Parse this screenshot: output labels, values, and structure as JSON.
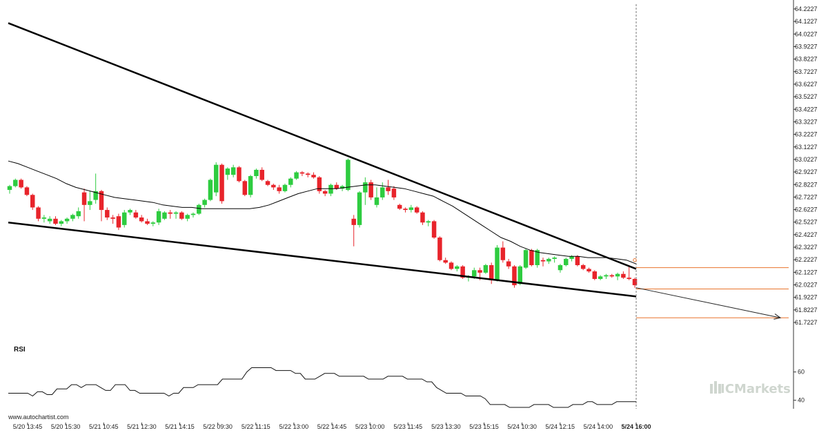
{
  "chart_data": {
    "type": "candlestick",
    "title": "",
    "x_tick_labels": [
      "5/20 13:45",
      "5/20 15:30",
      "5/21 10:45",
      "5/21 12:30",
      "5/21 14:15",
      "5/22 09:30",
      "5/22 11:15",
      "5/22 13:00",
      "5/22 14:45",
      "5/23 10:00",
      "5/23 11:45",
      "5/23 13:30",
      "5/23 15:15",
      "5/24 10:30",
      "5/24 12:15",
      "5/24 14:00",
      "5/24 16:00"
    ],
    "highlighted_x_label": "5/24 16:00",
    "y_tick_labels": [
      "64.2227",
      "64.1227",
      "64.0227",
      "63.9227",
      "63.8227",
      "63.7227",
      "63.6227",
      "63.5227",
      "63.4227",
      "63.3227",
      "63.2227",
      "63.1227",
      "63.0227",
      "62.9227",
      "62.8227",
      "62.7227",
      "62.6227",
      "62.5227",
      "62.4227",
      "62.3227",
      "62.2227",
      "62.1227",
      "62.0227",
      "61.9227",
      "61.8227",
      "61.7227"
    ],
    "ylim": [
      61.69,
      64.25
    ],
    "candles": [
      {
        "o": 62.78,
        "h": 62.82,
        "l": 62.75,
        "c": 62.81
      },
      {
        "o": 62.81,
        "h": 62.87,
        "l": 62.8,
        "c": 62.86
      },
      {
        "o": 62.86,
        "h": 62.87,
        "l": 62.79,
        "c": 62.8
      },
      {
        "o": 62.8,
        "h": 62.81,
        "l": 62.73,
        "c": 62.74
      },
      {
        "o": 62.74,
        "h": 62.75,
        "l": 62.62,
        "c": 62.64
      },
      {
        "o": 62.64,
        "h": 62.65,
        "l": 62.53,
        "c": 62.55
      },
      {
        "o": 62.55,
        "h": 62.58,
        "l": 62.52,
        "c": 62.56
      },
      {
        "o": 62.53,
        "h": 62.57,
        "l": 62.51,
        "c": 62.55
      },
      {
        "o": 62.55,
        "h": 62.57,
        "l": 62.5,
        "c": 62.51
      },
      {
        "o": 62.51,
        "h": 62.54,
        "l": 62.49,
        "c": 62.53
      },
      {
        "o": 62.53,
        "h": 62.56,
        "l": 62.51,
        "c": 62.55
      },
      {
        "o": 62.55,
        "h": 62.59,
        "l": 62.53,
        "c": 62.58
      },
      {
        "o": 62.57,
        "h": 62.64,
        "l": 62.55,
        "c": 62.61
      },
      {
        "o": 62.76,
        "h": 62.79,
        "l": 62.53,
        "c": 62.66
      },
      {
        "o": 62.66,
        "h": 62.77,
        "l": 62.62,
        "c": 62.69
      },
      {
        "o": 62.7,
        "h": 62.91,
        "l": 62.67,
        "c": 62.77
      },
      {
        "o": 62.77,
        "h": 62.78,
        "l": 62.53,
        "c": 62.62
      },
      {
        "o": 62.62,
        "h": 62.64,
        "l": 62.54,
        "c": 62.56
      },
      {
        "o": 62.56,
        "h": 62.58,
        "l": 62.51,
        "c": 62.55
      },
      {
        "o": 62.57,
        "h": 62.59,
        "l": 62.46,
        "c": 62.48
      },
      {
        "o": 62.5,
        "h": 62.62,
        "l": 62.48,
        "c": 62.6
      },
      {
        "o": 62.6,
        "h": 62.63,
        "l": 62.58,
        "c": 62.62
      },
      {
        "o": 62.6,
        "h": 62.62,
        "l": 62.55,
        "c": 62.56
      },
      {
        "o": 62.56,
        "h": 62.58,
        "l": 62.52,
        "c": 62.53
      },
      {
        "o": 62.53,
        "h": 62.55,
        "l": 62.5,
        "c": 62.51
      },
      {
        "o": 62.51,
        "h": 62.53,
        "l": 62.49,
        "c": 62.52
      },
      {
        "o": 62.52,
        "h": 62.63,
        "l": 62.5,
        "c": 62.61
      },
      {
        "o": 62.55,
        "h": 62.61,
        "l": 62.54,
        "c": 62.6
      },
      {
        "o": 62.6,
        "h": 62.62,
        "l": 62.55,
        "c": 62.59
      },
      {
        "o": 62.59,
        "h": 62.61,
        "l": 62.55,
        "c": 62.6
      },
      {
        "o": 62.6,
        "h": 62.61,
        "l": 62.54,
        "c": 62.55
      },
      {
        "o": 62.55,
        "h": 62.59,
        "l": 62.53,
        "c": 62.58
      },
      {
        "o": 62.58,
        "h": 62.6,
        "l": 62.56,
        "c": 62.59
      },
      {
        "o": 62.59,
        "h": 62.67,
        "l": 62.58,
        "c": 62.66
      },
      {
        "o": 62.66,
        "h": 62.71,
        "l": 62.64,
        "c": 62.7
      },
      {
        "o": 62.7,
        "h": 62.87,
        "l": 62.69,
        "c": 62.86
      },
      {
        "o": 62.76,
        "h": 63.0,
        "l": 62.73,
        "c": 62.98
      },
      {
        "o": 62.98,
        "h": 62.99,
        "l": 62.67,
        "c": 62.69
      },
      {
        "o": 62.9,
        "h": 62.96,
        "l": 62.86,
        "c": 62.95
      },
      {
        "o": 62.9,
        "h": 62.98,
        "l": 62.88,
        "c": 62.96
      },
      {
        "o": 62.96,
        "h": 62.97,
        "l": 62.84,
        "c": 62.85
      },
      {
        "o": 62.85,
        "h": 62.86,
        "l": 62.73,
        "c": 62.74
      },
      {
        "o": 62.74,
        "h": 62.9,
        "l": 62.72,
        "c": 62.89
      },
      {
        "o": 62.89,
        "h": 62.95,
        "l": 62.87,
        "c": 62.94
      },
      {
        "o": 62.94,
        "h": 62.96,
        "l": 62.85,
        "c": 62.86
      },
      {
        "o": 62.85,
        "h": 62.86,
        "l": 62.81,
        "c": 62.82
      },
      {
        "o": 62.82,
        "h": 62.83,
        "l": 62.78,
        "c": 62.8
      },
      {
        "o": 62.8,
        "h": 62.82,
        "l": 62.75,
        "c": 62.77
      },
      {
        "o": 62.77,
        "h": 62.83,
        "l": 62.76,
        "c": 62.82
      },
      {
        "o": 62.82,
        "h": 62.88,
        "l": 62.8,
        "c": 62.87
      },
      {
        "o": 62.87,
        "h": 62.93,
        "l": 62.86,
        "c": 62.92
      },
      {
        "o": 62.92,
        "h": 62.93,
        "l": 62.89,
        "c": 62.91
      },
      {
        "o": 62.91,
        "h": 62.92,
        "l": 62.88,
        "c": 62.9
      },
      {
        "o": 62.9,
        "h": 62.92,
        "l": 62.87,
        "c": 62.88
      },
      {
        "o": 62.88,
        "h": 62.89,
        "l": 62.75,
        "c": 62.77
      },
      {
        "o": 62.77,
        "h": 62.78,
        "l": 62.73,
        "c": 62.75
      },
      {
        "o": 62.75,
        "h": 62.83,
        "l": 62.73,
        "c": 62.82
      },
      {
        "o": 62.82,
        "h": 62.84,
        "l": 62.78,
        "c": 62.79
      },
      {
        "o": 62.79,
        "h": 62.82,
        "l": 62.77,
        "c": 62.81
      },
      {
        "o": 62.78,
        "h": 63.03,
        "l": 62.77,
        "c": 63.02
      },
      {
        "o": 62.55,
        "h": 62.58,
        "l": 62.33,
        "c": 62.5
      },
      {
        "o": 62.5,
        "h": 62.77,
        "l": 62.48,
        "c": 62.76
      },
      {
        "o": 62.76,
        "h": 62.88,
        "l": 62.66,
        "c": 62.84
      },
      {
        "o": 62.84,
        "h": 62.86,
        "l": 62.7,
        "c": 62.72
      },
      {
        "o": 62.66,
        "h": 62.8,
        "l": 62.64,
        "c": 62.72
      },
      {
        "o": 62.72,
        "h": 62.84,
        "l": 62.7,
        "c": 62.8
      },
      {
        "o": 62.8,
        "h": 62.86,
        "l": 62.74,
        "c": 62.77
      },
      {
        "o": 62.79,
        "h": 62.81,
        "l": 62.7,
        "c": 62.72
      },
      {
        "o": 62.66,
        "h": 62.67,
        "l": 62.62,
        "c": 62.63
      },
      {
        "o": 62.63,
        "h": 62.64,
        "l": 62.6,
        "c": 62.62
      },
      {
        "o": 62.62,
        "h": 62.66,
        "l": 62.6,
        "c": 62.64
      },
      {
        "o": 62.64,
        "h": 62.65,
        "l": 62.59,
        "c": 62.6
      },
      {
        "o": 62.6,
        "h": 62.61,
        "l": 62.5,
        "c": 62.52
      },
      {
        "o": 62.52,
        "h": 62.54,
        "l": 62.49,
        "c": 62.53
      },
      {
        "o": 62.53,
        "h": 62.54,
        "l": 62.39,
        "c": 62.4
      },
      {
        "o": 62.4,
        "h": 62.41,
        "l": 62.21,
        "c": 62.22
      },
      {
        "o": 62.22,
        "h": 62.24,
        "l": 62.19,
        "c": 62.2
      },
      {
        "o": 62.2,
        "h": 62.21,
        "l": 62.14,
        "c": 62.15
      },
      {
        "o": 62.15,
        "h": 62.18,
        "l": 62.13,
        "c": 62.17
      },
      {
        "o": 62.17,
        "h": 62.18,
        "l": 62.07,
        "c": 62.08
      },
      {
        "o": 62.08,
        "h": 62.1,
        "l": 62.05,
        "c": 62.09
      },
      {
        "o": 62.09,
        "h": 62.16,
        "l": 62.07,
        "c": 62.14
      },
      {
        "o": 62.14,
        "h": 62.16,
        "l": 62.06,
        "c": 62.12
      },
      {
        "o": 62.12,
        "h": 62.19,
        "l": 62.11,
        "c": 62.18
      },
      {
        "o": 62.18,
        "h": 62.2,
        "l": 62.03,
        "c": 62.06
      },
      {
        "o": 62.06,
        "h": 62.34,
        "l": 62.05,
        "c": 62.32
      },
      {
        "o": 62.32,
        "h": 62.37,
        "l": 62.2,
        "c": 62.22
      },
      {
        "o": 62.21,
        "h": 62.23,
        "l": 62.15,
        "c": 62.17
      },
      {
        "o": 62.17,
        "h": 62.18,
        "l": 62.0,
        "c": 62.02
      },
      {
        "o": 62.03,
        "h": 62.18,
        "l": 62.02,
        "c": 62.17
      },
      {
        "o": 62.16,
        "h": 62.31,
        "l": 62.15,
        "c": 62.3
      },
      {
        "o": 62.3,
        "h": 62.31,
        "l": 62.17,
        "c": 62.18
      },
      {
        "o": 62.18,
        "h": 62.31,
        "l": 62.16,
        "c": 62.3
      },
      {
        "o": 62.22,
        "h": 62.24,
        "l": 62.17,
        "c": 62.21
      },
      {
        "o": 62.21,
        "h": 62.24,
        "l": 62.19,
        "c": 62.23
      },
      {
        "o": 62.23,
        "h": 62.25,
        "l": 62.2,
        "c": 62.24
      },
      {
        "o": 62.14,
        "h": 62.19,
        "l": 62.12,
        "c": 62.18
      },
      {
        "o": 62.18,
        "h": 62.24,
        "l": 62.17,
        "c": 62.23
      },
      {
        "o": 62.23,
        "h": 62.26,
        "l": 62.21,
        "c": 62.25
      },
      {
        "o": 62.25,
        "h": 62.26,
        "l": 62.17,
        "c": 62.18
      },
      {
        "o": 62.18,
        "h": 62.19,
        "l": 62.14,
        "c": 62.15
      },
      {
        "o": 62.15,
        "h": 62.16,
        "l": 62.12,
        "c": 62.13
      },
      {
        "o": 62.13,
        "h": 62.14,
        "l": 62.06,
        "c": 62.07
      },
      {
        "o": 62.07,
        "h": 62.1,
        "l": 62.06,
        "c": 62.09
      },
      {
        "o": 62.09,
        "h": 62.11,
        "l": 62.07,
        "c": 62.1
      },
      {
        "o": 62.1,
        "h": 62.11,
        "l": 62.08,
        "c": 62.09
      },
      {
        "o": 62.09,
        "h": 62.12,
        "l": 62.06,
        "c": 62.11
      },
      {
        "o": 62.11,
        "h": 62.13,
        "l": 62.07,
        "c": 62.08
      },
      {
        "o": 62.08,
        "h": 62.18,
        "l": 62.06,
        "c": 62.07
      },
      {
        "o": 62.07,
        "h": 62.08,
        "l": 62.0,
        "c": 62.02
      }
    ],
    "moving_average": [
      63.01,
      62.99,
      62.96,
      62.93,
      62.9,
      62.87,
      62.83,
      62.8,
      62.78,
      62.76,
      62.74,
      62.72,
      62.71,
      62.7,
      62.69,
      62.68,
      62.66,
      62.65,
      62.64,
      62.64,
      62.63,
      62.63,
      62.63,
      62.63,
      62.63,
      62.63,
      62.64,
      62.66,
      62.69,
      62.72,
      62.75,
      62.77,
      62.79,
      62.79,
      62.79,
      62.8,
      62.81,
      62.82,
      62.82,
      62.81,
      62.8,
      62.79,
      62.77,
      62.75,
      62.73,
      62.69,
      62.65,
      62.6,
      62.55,
      62.5,
      62.45,
      62.4,
      62.37,
      62.33,
      62.3,
      62.28,
      62.27,
      62.26,
      62.25,
      62.25,
      62.24,
      62.24,
      62.24,
      62.23,
      62.22,
      62.19
    ],
    "resistance_line": {
      "x": [
        "5/20 13:45",
        "5/24 16:00"
      ],
      "y": [
        64.11,
        62.15
      ]
    },
    "support_line": {
      "x": [
        "5/20 13:45",
        "5/24 16:00"
      ],
      "y": [
        62.52,
        61.93
      ]
    },
    "projection_arrow": {
      "from_y": 62.0,
      "to_y": 61.76
    },
    "target_levels": [
      62.16,
      61.99,
      61.76
    ],
    "rsi": {
      "label": "RSI",
      "tick_labels": [
        "60",
        "40"
      ],
      "ylim": [
        34,
        74
      ],
      "values": [
        45,
        45,
        45,
        45,
        45,
        43,
        46,
        46,
        44,
        44,
        48,
        48,
        48,
        51,
        51,
        49,
        51,
        51,
        51,
        49,
        47,
        47,
        51,
        51,
        51,
        47,
        47,
        45,
        45,
        45,
        45,
        45,
        45,
        43,
        45,
        45,
        49,
        49,
        49,
        51,
        51,
        51,
        51,
        51,
        55,
        55,
        55,
        55,
        55,
        60,
        63,
        63,
        63,
        63,
        63,
        61,
        61,
        61,
        61,
        59,
        59,
        55,
        55,
        55,
        57,
        59,
        59,
        59,
        57,
        57,
        57,
        57,
        57,
        57,
        55,
        55,
        55,
        55,
        57,
        57,
        57,
        57,
        55,
        55,
        55,
        55,
        53,
        53,
        49,
        47,
        45,
        45,
        45,
        45,
        43,
        43,
        43,
        43,
        41,
        37,
        37,
        37,
        37,
        35,
        35,
        35,
        35,
        35,
        37,
        37,
        37,
        37,
        35,
        35,
        35,
        35,
        37,
        37,
        37,
        39,
        39,
        37,
        37,
        37,
        37,
        39,
        39,
        39,
        39,
        39
      ]
    },
    "colors": {
      "up": "#2ecc40",
      "down": "#e8242b",
      "line": "#000000",
      "target": "#e8732c",
      "vline": "#777777",
      "watermark": "#cfd6cf"
    }
  },
  "branding": {
    "site": "www.autochartist.com",
    "watermark_text": "ICMarkets",
    "watermark_icon": "bar-chart-icon"
  }
}
